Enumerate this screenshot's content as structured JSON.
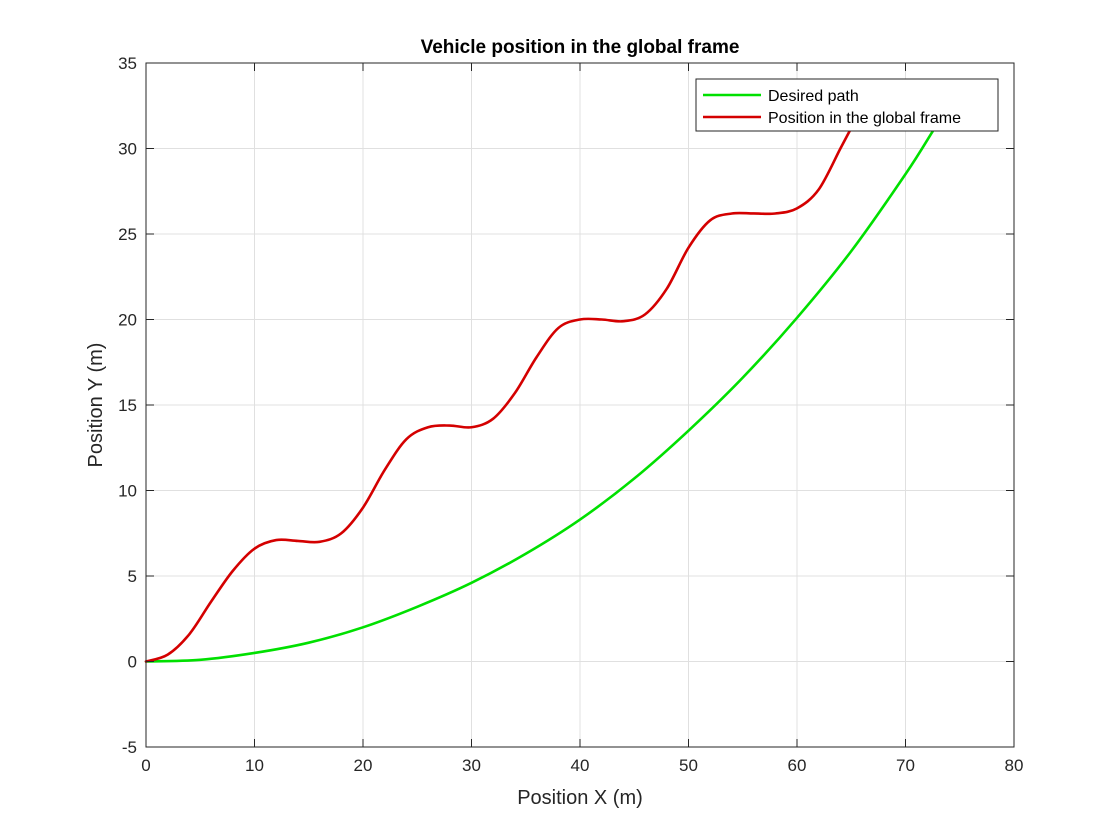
{
  "chart_data": {
    "type": "line",
    "title": "Vehicle position in the global frame",
    "xlabel": "Position X (m)",
    "ylabel": "Position Y (m)",
    "xlim": [
      0,
      80
    ],
    "ylim": [
      -5,
      35
    ],
    "xticks": [
      0,
      10,
      20,
      30,
      40,
      50,
      60,
      70,
      80
    ],
    "yticks": [
      -5,
      0,
      5,
      10,
      15,
      20,
      25,
      30,
      35
    ],
    "grid": true,
    "legend_position": "top-right",
    "series": [
      {
        "name": "Desired path",
        "color": "#00e000",
        "x": [
          0,
          5,
          10,
          15,
          20,
          25,
          30,
          35,
          40,
          45,
          50,
          55,
          60,
          65,
          70,
          72.5
        ],
        "y": [
          0,
          0.1,
          0.5,
          1.1,
          2.0,
          3.2,
          4.6,
          6.3,
          8.3,
          10.7,
          13.5,
          16.6,
          20.1,
          24.0,
          28.5,
          31.0
        ]
      },
      {
        "name": "Position in the global frame",
        "color": "#d40000",
        "x": [
          0,
          2,
          4,
          6,
          8,
          10,
          12,
          14,
          16,
          18,
          20,
          22,
          24,
          26,
          28,
          30,
          32,
          34,
          36,
          38,
          40,
          42,
          44,
          46,
          48,
          50,
          52,
          54,
          56,
          58,
          60,
          62,
          64,
          65
        ],
        "y": [
          0,
          0.4,
          1.6,
          3.5,
          5.3,
          6.6,
          7.1,
          7.05,
          7.0,
          7.5,
          9.0,
          11.2,
          13.0,
          13.7,
          13.8,
          13.7,
          14.2,
          15.7,
          17.8,
          19.5,
          20.0,
          20.0,
          19.9,
          20.3,
          21.8,
          24.2,
          25.8,
          26.2,
          26.2,
          26.2,
          26.5,
          27.6,
          30.0,
          31.2
        ]
      }
    ]
  }
}
